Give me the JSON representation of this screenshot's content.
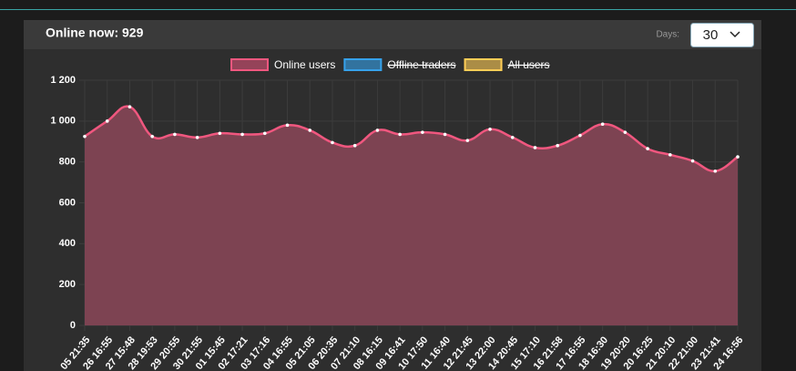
{
  "header": {
    "title": "Online now: 929",
    "days_label": "Days:",
    "days_value": "30"
  },
  "chart_data": {
    "type": "area",
    "categories": [
      "05 21:35",
      "26 16:55",
      "27 15:48",
      "28 19:53",
      "29 20:55",
      "30 21:55",
      "01 15:45",
      "02 17:21",
      "03 17:16",
      "04 16:55",
      "05 21:05",
      "06 20:35",
      "07 21:10",
      "08 16:15",
      "09 16:41",
      "10 17:50",
      "11 16:40",
      "12 21:45",
      "13 22:00",
      "14 20:45",
      "15 17:10",
      "16 21:58",
      "17 16:55",
      "18 16:30",
      "19 20:20",
      "20 16:25",
      "21 20:10",
      "22 21:00",
      "23 21:41",
      "24 16:56"
    ],
    "series": [
      {
        "name": "Online users",
        "color": "#f0577f",
        "values": [
          925,
          1000,
          1070,
          925,
          935,
          920,
          940,
          935,
          940,
          980,
          955,
          895,
          880,
          955,
          935,
          945,
          935,
          905,
          960,
          920,
          870,
          880,
          930,
          985,
          945,
          865,
          835,
          805,
          755,
          825
        ]
      },
      {
        "name": "Offline traders",
        "color": "#36a2eb",
        "hidden": true
      },
      {
        "name": "All users",
        "color": "#ffcd56",
        "hidden": true
      }
    ],
    "ylim": [
      0,
      1200
    ],
    "yticks": [
      0,
      200,
      400,
      600,
      800,
      {
        "value": 1000,
        "label": "1 000"
      },
      {
        "value": 1200,
        "label": "1 200"
      }
    ],
    "grid": true,
    "legend": "top"
  }
}
